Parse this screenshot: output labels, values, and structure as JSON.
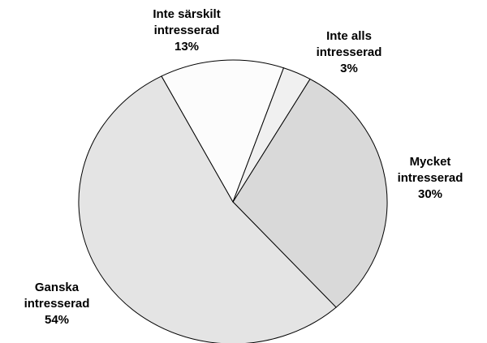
{
  "chart_data": {
    "type": "pie",
    "categories": [
      "Mycket intresserad",
      "Ganska intresserad",
      "Inte särskilt intresserad",
      "Inte alls intresserad"
    ],
    "values": [
      30,
      54,
      13,
      3
    ],
    "value_labels": [
      "30%",
      "54%",
      "13%",
      "3%"
    ],
    "colors": [
      "#d9d9d9",
      "#e4e4e4",
      "#fcfcfc",
      "#f0f0f0"
    ]
  }
}
